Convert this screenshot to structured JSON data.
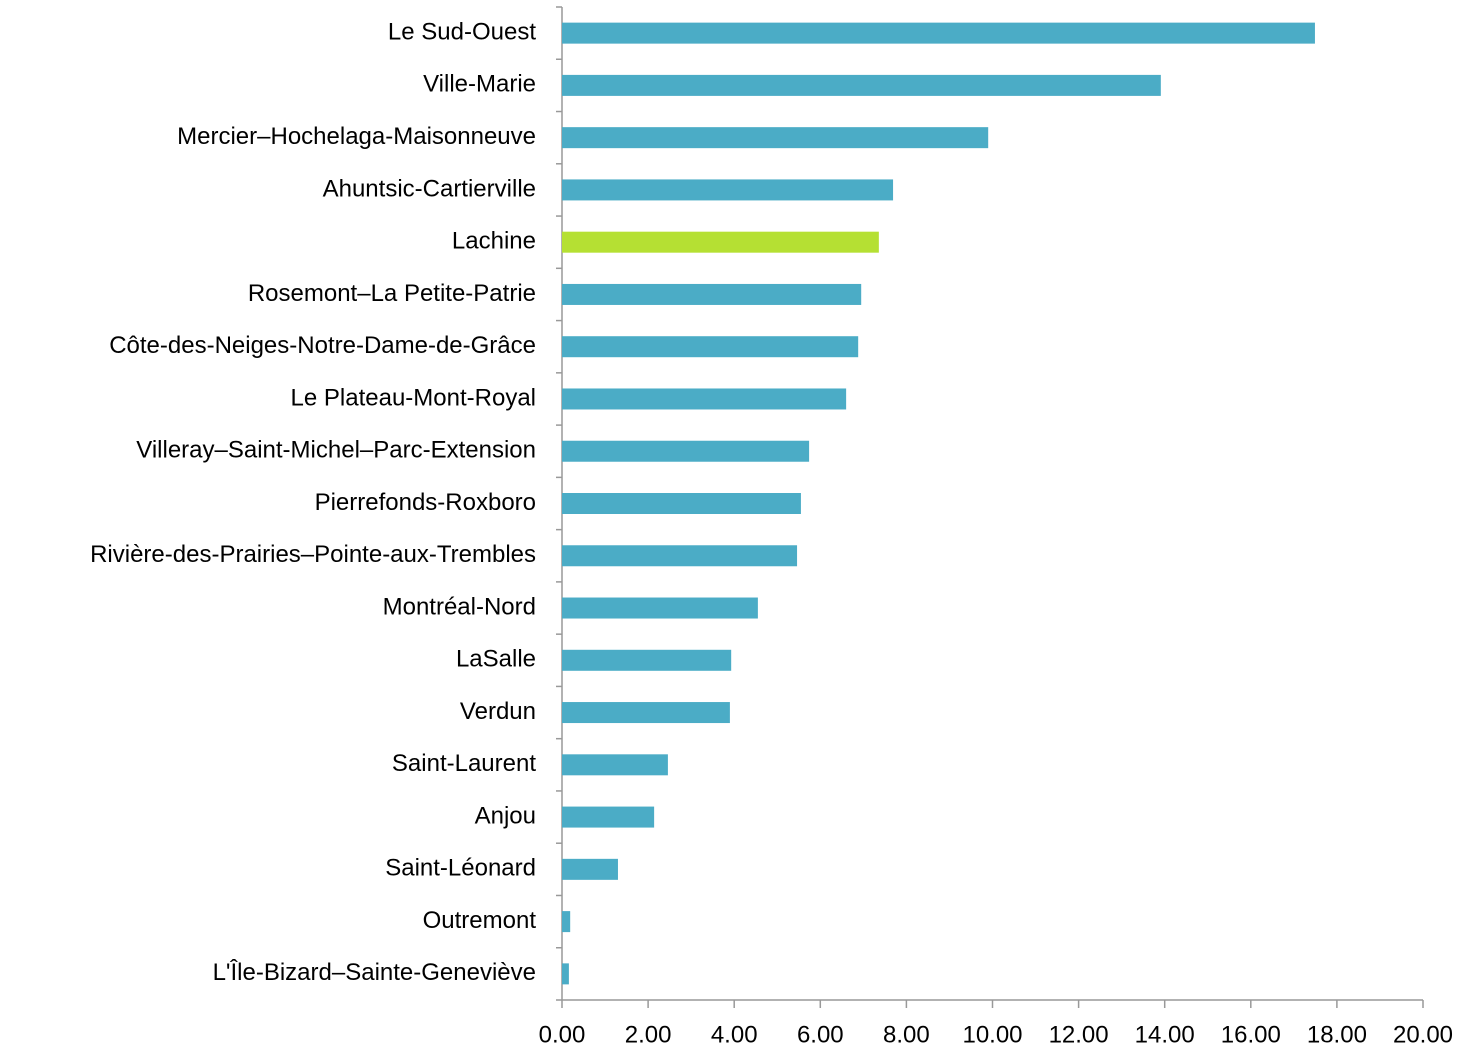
{
  "chart_data": {
    "type": "barh",
    "categories": [
      "Le Sud-Ouest",
      "Ville-Marie",
      "Mercier–Hochelaga-Maisonneuve",
      "Ahuntsic-Cartierville",
      "Lachine",
      "Rosemont–La Petite-Patrie",
      "Côte-des-Neiges-Notre-Dame-de-Grâce",
      "Le Plateau-Mont-Royal",
      "Villeray–Saint-Michel–Parc-Extension",
      "Pierrefonds-Roxboro",
      "Rivière-des-Prairies–Pointe-aux-Trembles",
      "Montréal-Nord",
      "LaSalle",
      "Verdun",
      "Saint-Laurent",
      "Anjou",
      "Saint-Léonard",
      "Outremont",
      "L'Île-Bizard–Sainte-Geneviève"
    ],
    "values": [
      17.49,
      13.91,
      9.9,
      7.69,
      7.36,
      6.95,
      6.88,
      6.6,
      5.74,
      5.55,
      5.46,
      4.55,
      3.93,
      3.9,
      2.46,
      2.14,
      1.3,
      0.19,
      0.16
    ],
    "colors": [
      "#4bacc6",
      "#4bacc6",
      "#4bacc6",
      "#4bacc6",
      "#b5e033",
      "#4bacc6",
      "#4bacc6",
      "#4bacc6",
      "#4bacc6",
      "#4bacc6",
      "#4bacc6",
      "#4bacc6",
      "#4bacc6",
      "#4bacc6",
      "#4bacc6",
      "#4bacc6",
      "#4bacc6",
      "#4bacc6",
      "#4bacc6"
    ],
    "xlim": [
      0,
      20
    ],
    "xticks": [
      {
        "value": 0,
        "label": "0.00"
      },
      {
        "value": 2,
        "label": "2.00"
      },
      {
        "value": 4,
        "label": "4.00"
      },
      {
        "value": 6,
        "label": "6.00"
      },
      {
        "value": 8,
        "label": "8.00"
      },
      {
        "value": 10,
        "label": "10.00"
      },
      {
        "value": 12,
        "label": "12.00"
      },
      {
        "value": 14,
        "label": "14.00"
      },
      {
        "value": 16,
        "label": "16.00"
      },
      {
        "value": 18,
        "label": "18.00"
      },
      {
        "value": 20,
        "label": "20.00"
      }
    ],
    "grid": false
  }
}
